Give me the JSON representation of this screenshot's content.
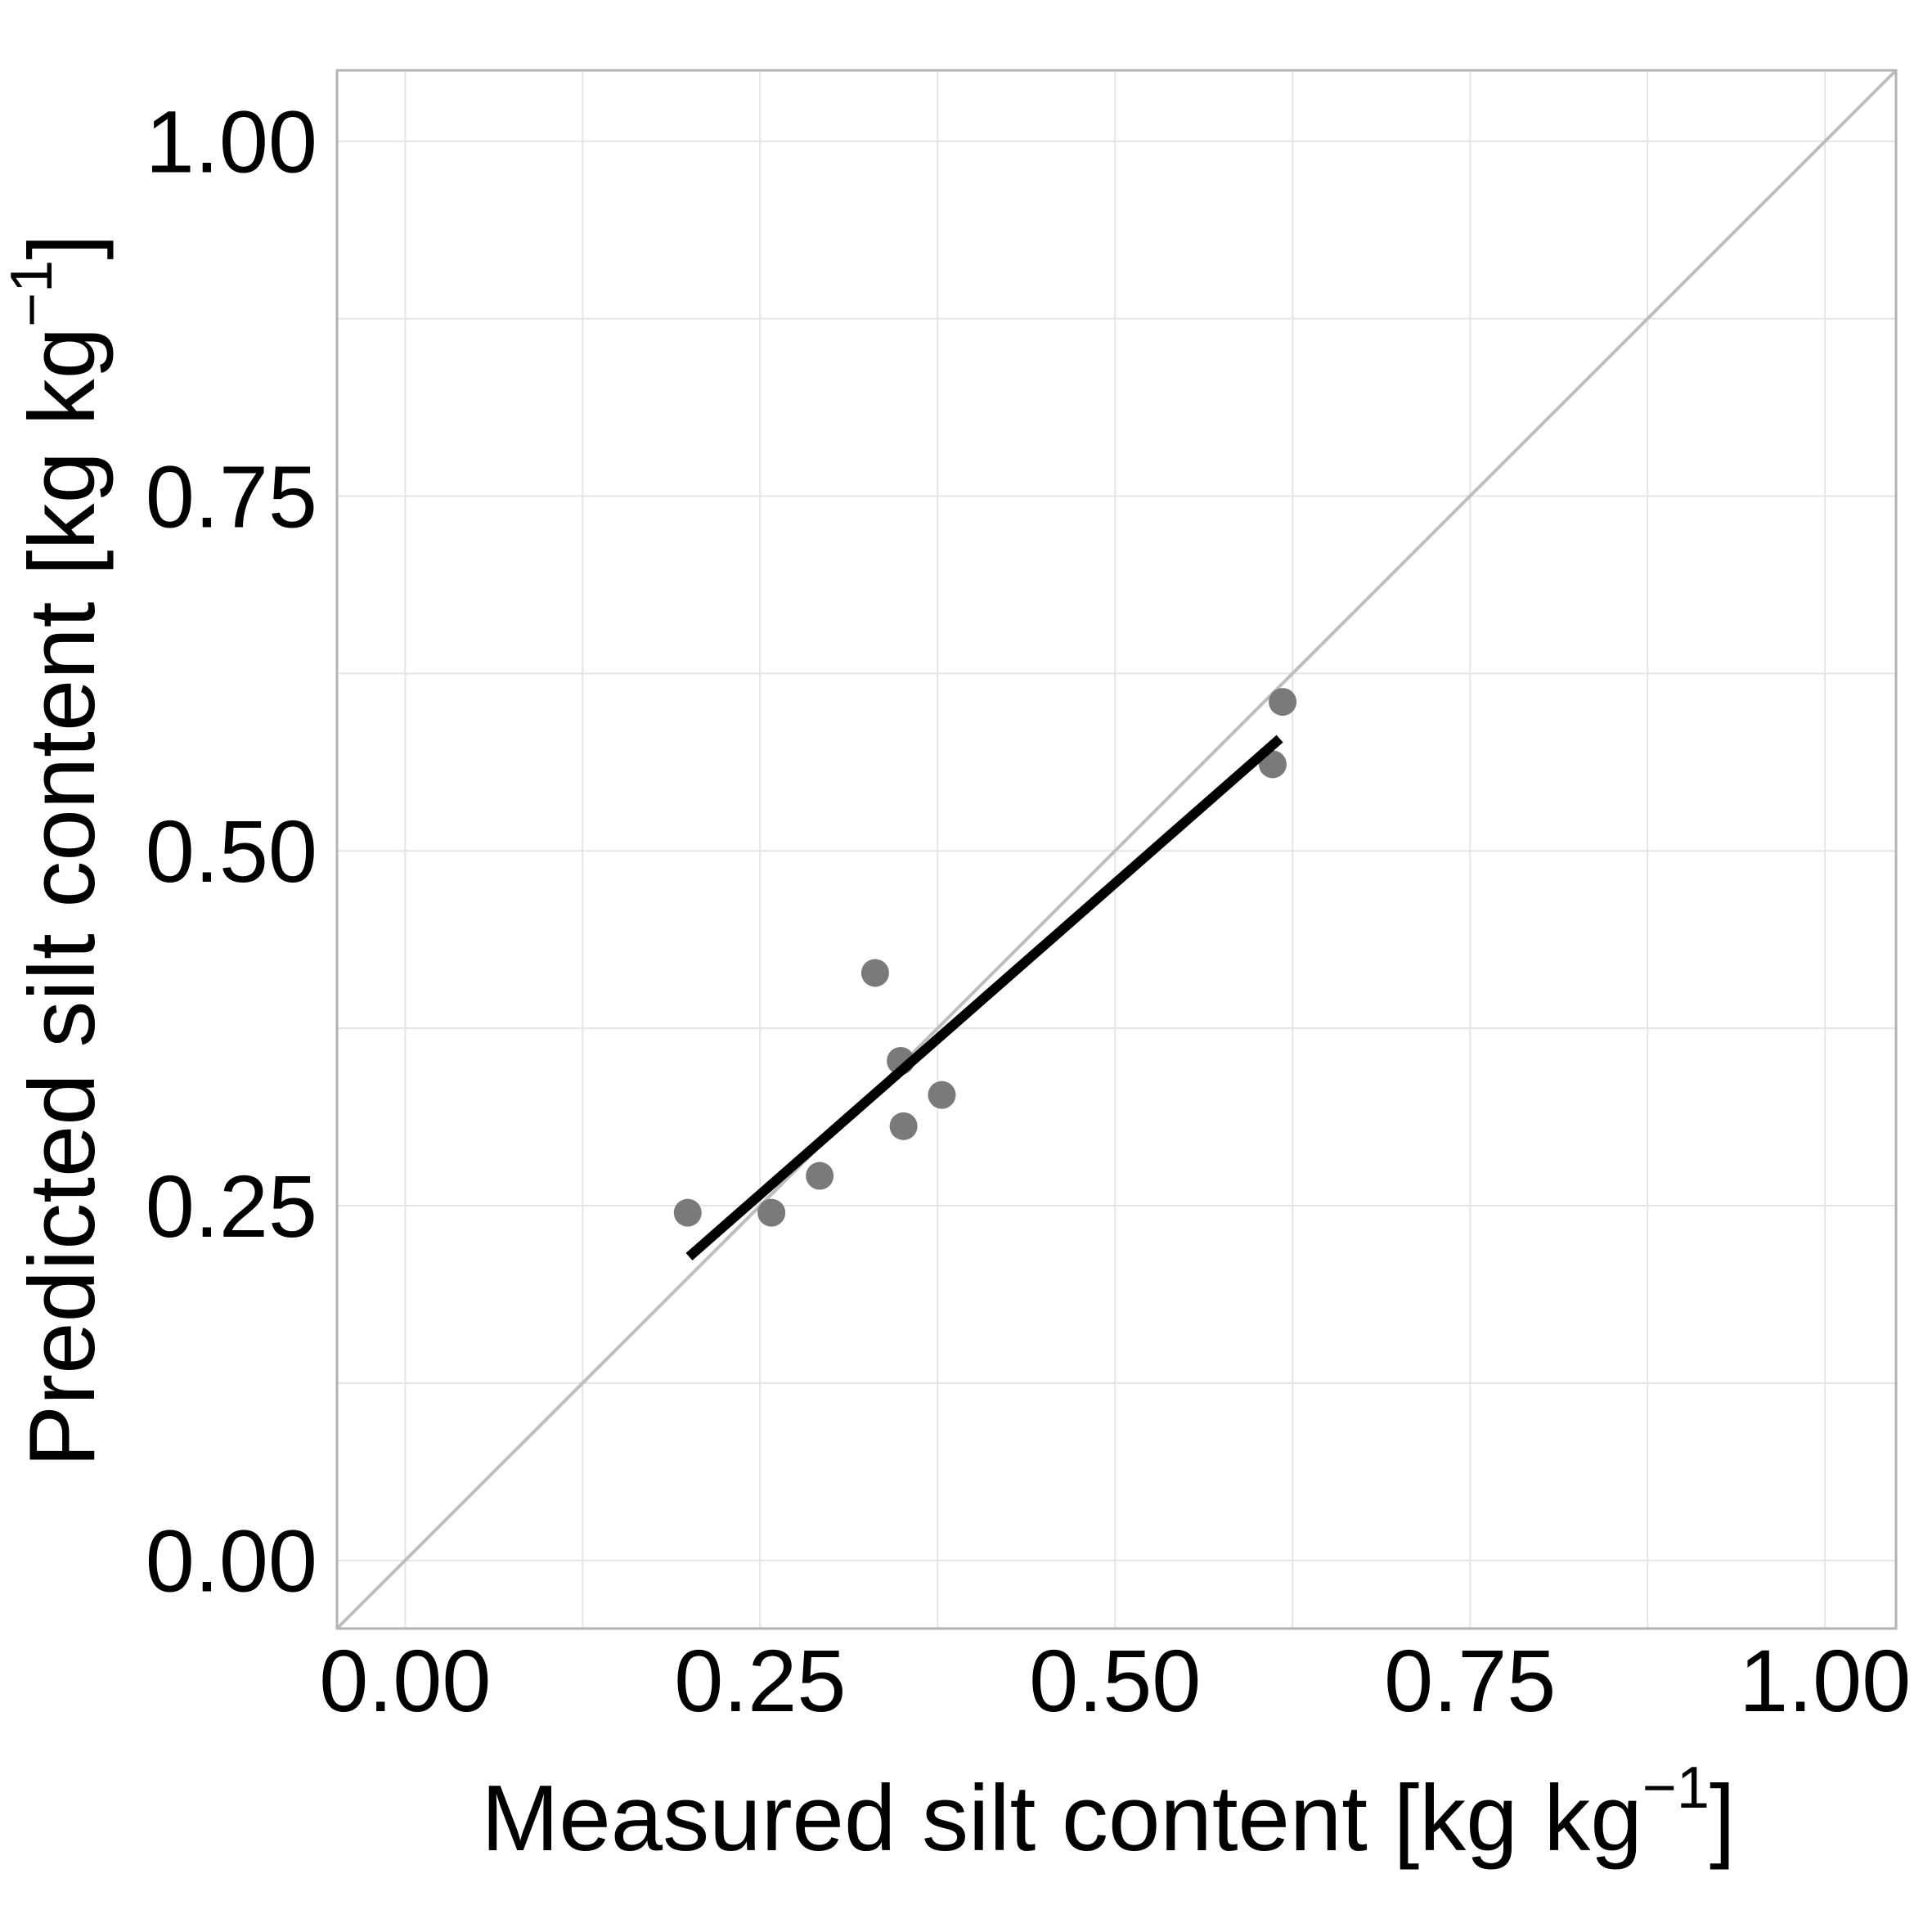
{
  "chart_data": {
    "type": "scatter",
    "xlabel": {
      "text": "Measured silt content [kg kg",
      "superscript": "−1",
      "suffix": "]"
    },
    "ylabel": {
      "text": "Predicted silt content [kg kg",
      "superscript": "−1",
      "suffix": "]"
    },
    "xlim": [
      -0.048,
      1.05
    ],
    "ylim": [
      -0.048,
      1.05
    ],
    "x_ticks": [
      {
        "value": 0.0,
        "label": "0.00"
      },
      {
        "value": 0.25,
        "label": "0.25"
      },
      {
        "value": 0.5,
        "label": "0.50"
      },
      {
        "value": 0.75,
        "label": "0.75"
      },
      {
        "value": 1.0,
        "label": "1.00"
      }
    ],
    "y_ticks": [
      {
        "value": 0.0,
        "label": "0.00"
      },
      {
        "value": 0.25,
        "label": "0.25"
      },
      {
        "value": 0.5,
        "label": "0.50"
      },
      {
        "value": 0.75,
        "label": "0.75"
      },
      {
        "value": 1.0,
        "label": "1.00"
      }
    ],
    "minor_grid": [
      0.125,
      0.375,
      0.625,
      0.875
    ],
    "grid": true,
    "legend": "none",
    "points": [
      {
        "x": 0.199,
        "y": 0.245
      },
      {
        "x": 0.258,
        "y": 0.245
      },
      {
        "x": 0.292,
        "y": 0.271
      },
      {
        "x": 0.331,
        "y": 0.414
      },
      {
        "x": 0.349,
        "y": 0.352
      },
      {
        "x": 0.351,
        "y": 0.306
      },
      {
        "x": 0.378,
        "y": 0.328
      },
      {
        "x": 0.611,
        "y": 0.561
      },
      {
        "x": 0.618,
        "y": 0.605
      }
    ],
    "regression_line": {
      "x": [
        0.2,
        0.616
      ],
      "y": [
        0.214,
        0.579
      ]
    },
    "identity_line": true,
    "colors": {
      "points": "#7a7a7a",
      "regression": "#000000",
      "identity": "#bebebe",
      "grid": "#e5e5e5",
      "panel_border": "#b3b3b3"
    }
  }
}
